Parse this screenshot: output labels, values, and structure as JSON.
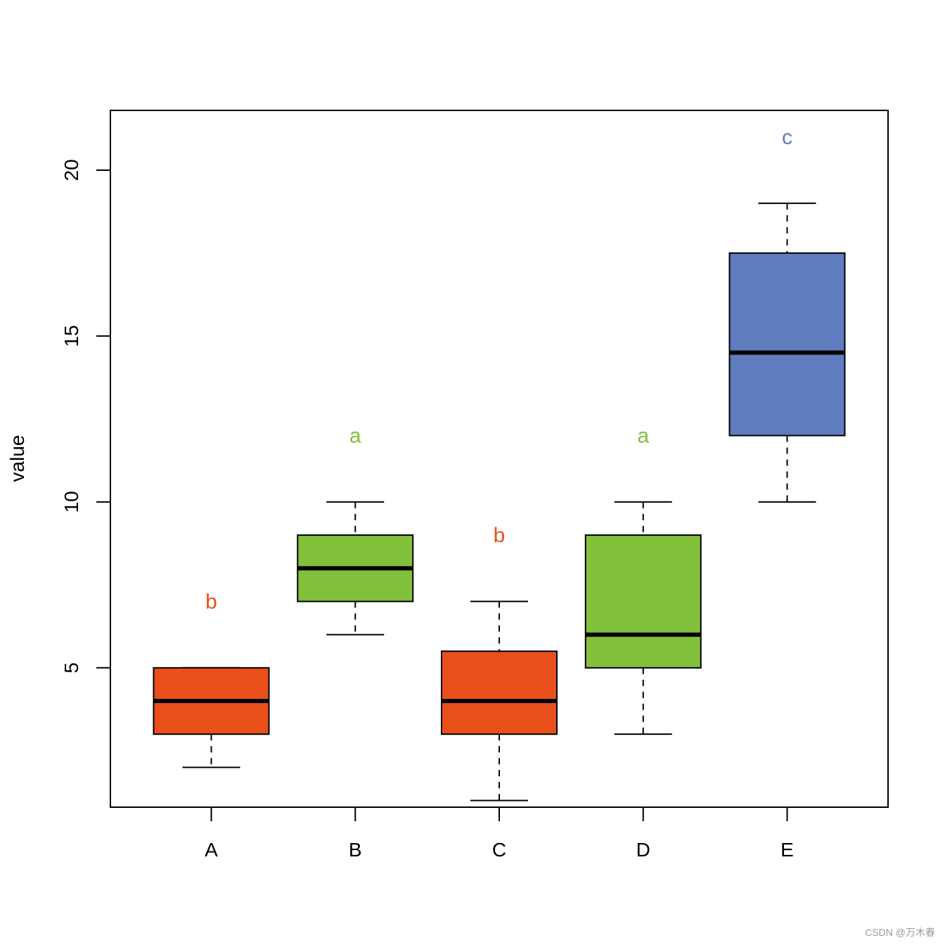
{
  "chart_data": {
    "type": "boxplot",
    "ylabel": "value",
    "xlabel": "",
    "title": "",
    "ylim": [
      0.8,
      21.8
    ],
    "yticks": [
      5,
      10,
      15,
      20
    ],
    "categories": [
      "A",
      "B",
      "C",
      "D",
      "E"
    ],
    "boxes": [
      {
        "name": "A",
        "min": 2,
        "q1": 3,
        "median": 4,
        "q3": 5,
        "max": 5,
        "letter": "b",
        "color": "#E94F1B"
      },
      {
        "name": "B",
        "min": 6,
        "q1": 7,
        "median": 8,
        "q3": 9,
        "max": 10,
        "letter": "a",
        "color": "#82BF3A"
      },
      {
        "name": "C",
        "min": 1,
        "q1": 3,
        "median": 4,
        "q3": 5.5,
        "max": 7,
        "letter": "b",
        "color": "#E94F1B"
      },
      {
        "name": "D",
        "min": 3,
        "q1": 5,
        "median": 6,
        "q3": 9,
        "max": 10,
        "letter": "a",
        "color": "#82BF3A"
      },
      {
        "name": "E",
        "min": 10,
        "q1": 12,
        "median": 14.5,
        "q3": 17.5,
        "max": 19,
        "letter": "c",
        "color": "#5E7CBE"
      }
    ],
    "letter_y": [
      7,
      12,
      9,
      12,
      21
    ],
    "grid": false,
    "legend": "none"
  },
  "watermark": "CSDN @万木春"
}
